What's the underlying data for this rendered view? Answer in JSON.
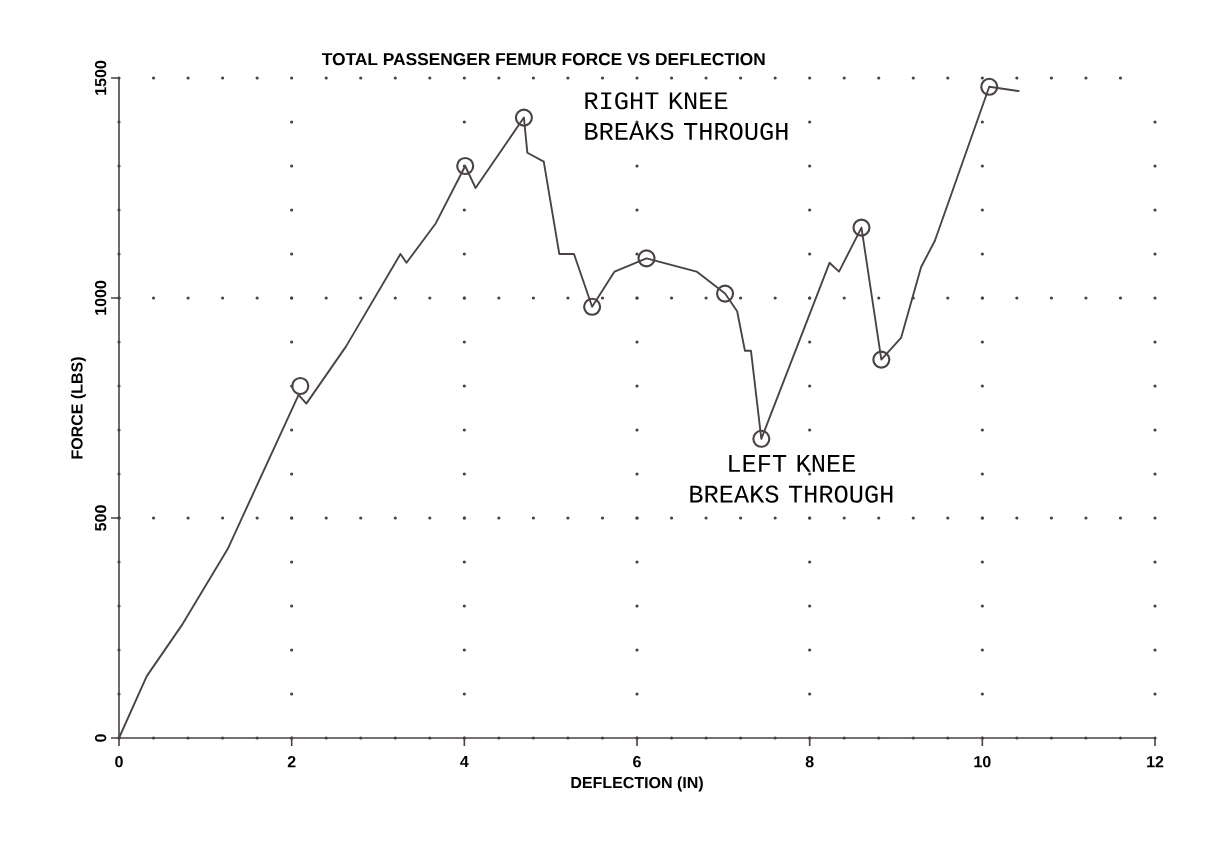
{
  "chart_data": {
    "type": "line",
    "title": "TOTAL PASSENGER FEMUR FORCE VS DEFLECTION",
    "xlabel": "DEFLECTION (IN)",
    "ylabel": "FORCE (LBS)",
    "xlim": [
      0,
      12
    ],
    "ylim": [
      0,
      1500
    ],
    "xticks": [
      0,
      2,
      4,
      6,
      8,
      10,
      12
    ],
    "yticks": [
      0,
      500,
      1000,
      1500
    ],
    "grid": true,
    "line_style": "solid",
    "series": [
      {
        "color": "#4a4244",
        "marker": "none",
        "x": [
          0,
          0.32,
          0.74,
          1.26,
          2.08,
          2.17,
          2.63,
          3.26,
          3.33,
          3.67,
          4.01,
          4.13,
          4.69,
          4.73,
          4.92,
          5.1,
          5.27,
          5.48,
          5.74,
          6.11,
          6.69,
          7.02,
          7.16,
          7.25,
          7.32,
          7.44,
          8.23,
          8.34,
          8.6,
          8.83,
          9.06,
          9.29,
          9.45,
          10.08,
          10.43
        ],
        "values": [
          0,
          140,
          260,
          430,
          780,
          760,
          890,
          1100,
          1080,
          1170,
          1300,
          1250,
          1410,
          1330,
          1310,
          1100,
          1100,
          980,
          1060,
          1090,
          1060,
          1010,
          970,
          880,
          880,
          680,
          1080,
          1060,
          1160,
          860,
          910,
          1070,
          1130,
          1480,
          1470
        ]
      },
      {
        "type": "scatter",
        "color": "#4a4244",
        "marker": "circle",
        "x": [
          2.1,
          4.01,
          4.69,
          5.48,
          6.11,
          7.02,
          7.44,
          8.6,
          8.83,
          10.08
        ],
        "values": [
          800,
          1300,
          1410,
          980,
          1090,
          1010,
          680,
          1160,
          860,
          1480
        ]
      }
    ],
    "annotations": [
      "RIGHT KNEE BREAKS THROUGH",
      "LEFT KNEE BREAKS THROUGH"
    ]
  }
}
